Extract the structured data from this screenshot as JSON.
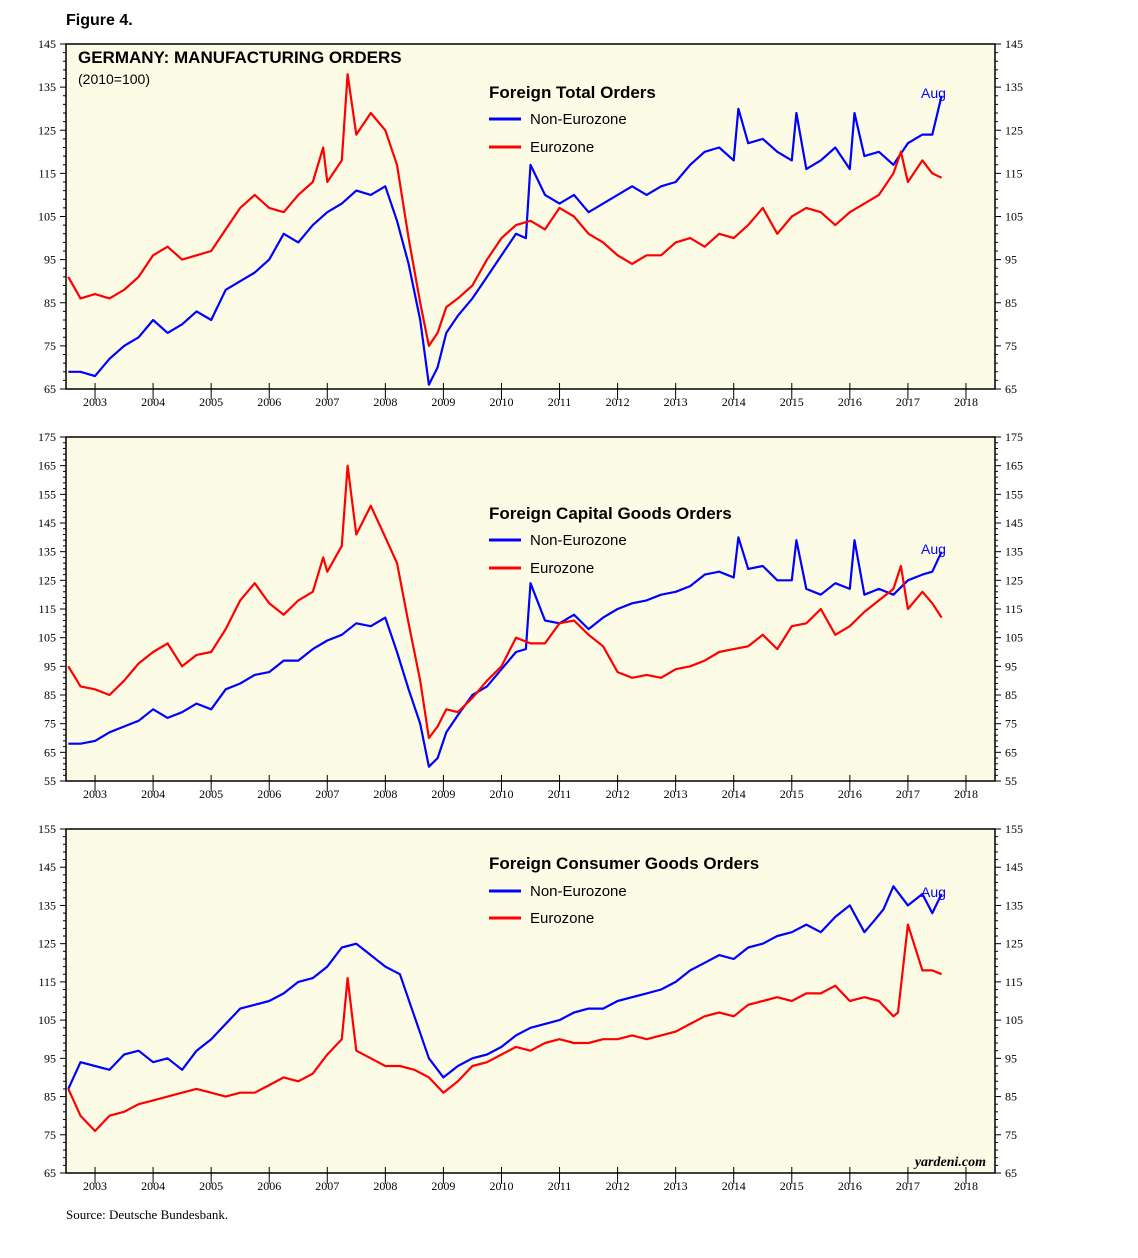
{
  "figure_label": "Figure 4.",
  "source": "Source: Deutsche Bundesbank.",
  "watermark": "yardeni.com",
  "colors": {
    "non_eurozone": "#0000ff",
    "eurozone": "#ff0000",
    "panel_bg": "#fcfce6"
  },
  "chart_data": [
    {
      "type": "line",
      "figure_title": "GERMANY: MANUFACTURING ORDERS",
      "figure_subtitle": "(2010=100)",
      "title": "Foreign Total Orders",
      "x_tick_labels": [
        "2003",
        "2004",
        "2005",
        "2006",
        "2007",
        "2008",
        "2009",
        "2010",
        "2011",
        "2012",
        "2013",
        "2014",
        "2015",
        "2016",
        "2017",
        "2018"
      ],
      "xlim": [
        2002.5,
        2018.5
      ],
      "ylim": [
        65,
        145
      ],
      "yticks": [
        65,
        75,
        85,
        95,
        105,
        115,
        125,
        135,
        145
      ],
      "end_label": "Aug",
      "series": [
        {
          "name": "Non-Eurozone",
          "x": [
            2002.54,
            2002.75,
            2003.0,
            2003.25,
            2003.5,
            2003.75,
            2004.0,
            2004.25,
            2004.5,
            2004.75,
            2005.0,
            2005.25,
            2005.5,
            2005.75,
            2006.0,
            2006.25,
            2006.5,
            2006.75,
            2007.0,
            2007.25,
            2007.5,
            2007.75,
            2008.0,
            2008.2,
            2008.4,
            2008.6,
            2008.75,
            2008.9,
            2009.05,
            2009.25,
            2009.5,
            2009.75,
            2010.0,
            2010.25,
            2010.42,
            2010.5,
            2010.75,
            2011.0,
            2011.25,
            2011.5,
            2011.75,
            2012.0,
            2012.25,
            2012.5,
            2012.75,
            2013.0,
            2013.25,
            2013.5,
            2013.75,
            2014.0,
            2014.08,
            2014.25,
            2014.5,
            2014.75,
            2015.0,
            2015.08,
            2015.25,
            2015.5,
            2015.75,
            2016.0,
            2016.08,
            2016.25,
            2016.5,
            2016.75,
            2017.0,
            2017.25,
            2017.42,
            2017.58
          ],
          "values": [
            69,
            69,
            68,
            72,
            75,
            77,
            81,
            78,
            80,
            83,
            81,
            88,
            90,
            92,
            95,
            101,
            99,
            103,
            106,
            108,
            111,
            110,
            112,
            104,
            94,
            81,
            66,
            70,
            78,
            82,
            86,
            91,
            96,
            101,
            100,
            117,
            110,
            108,
            110,
            106,
            108,
            110,
            112,
            110,
            112,
            113,
            117,
            120,
            121,
            118,
            130,
            122,
            123,
            120,
            118,
            129,
            116,
            118,
            121,
            116,
            129,
            119,
            120,
            117,
            122,
            124,
            124,
            133
          ]
        },
        {
          "name": "Eurozone",
          "x": [
            2002.54,
            2002.75,
            2003.0,
            2003.25,
            2003.5,
            2003.75,
            2004.0,
            2004.25,
            2004.5,
            2004.75,
            2005.0,
            2005.25,
            2005.5,
            2005.75,
            2006.0,
            2006.25,
            2006.5,
            2006.75,
            2006.93,
            2007.0,
            2007.25,
            2007.35,
            2007.5,
            2007.75,
            2008.0,
            2008.2,
            2008.4,
            2008.6,
            2008.75,
            2008.9,
            2009.05,
            2009.25,
            2009.5,
            2009.75,
            2010.0,
            2010.25,
            2010.5,
            2010.75,
            2011.0,
            2011.25,
            2011.5,
            2011.75,
            2012.0,
            2012.25,
            2012.5,
            2012.75,
            2013.0,
            2013.25,
            2013.5,
            2013.75,
            2014.0,
            2014.25,
            2014.5,
            2014.75,
            2015.0,
            2015.25,
            2015.5,
            2015.75,
            2016.0,
            2016.25,
            2016.5,
            2016.75,
            2016.88,
            2017.0,
            2017.25,
            2017.42,
            2017.58
          ],
          "values": [
            91,
            86,
            87,
            86,
            88,
            91,
            96,
            98,
            95,
            96,
            97,
            102,
            107,
            110,
            107,
            106,
            110,
            113,
            121,
            113,
            118,
            138,
            124,
            129,
            125,
            117,
            100,
            85,
            75,
            78,
            84,
            86,
            89,
            95,
            100,
            103,
            104,
            102,
            107,
            105,
            101,
            99,
            96,
            94,
            96,
            96,
            99,
            100,
            98,
            101,
            100,
            103,
            107,
            101,
            105,
            107,
            106,
            103,
            106,
            108,
            110,
            115,
            120,
            113,
            118,
            115,
            114
          ]
        }
      ],
      "legend": [
        "Non-Eurozone",
        "Eurozone"
      ]
    },
    {
      "type": "line",
      "title": "Foreign Capital Goods Orders",
      "x_tick_labels": [
        "2003",
        "2004",
        "2005",
        "2006",
        "2007",
        "2008",
        "2009",
        "2010",
        "2011",
        "2012",
        "2013",
        "2014",
        "2015",
        "2016",
        "2017",
        "2018"
      ],
      "xlim": [
        2002.5,
        2018.5
      ],
      "ylim": [
        55,
        175
      ],
      "yticks": [
        55,
        65,
        75,
        85,
        95,
        105,
        115,
        125,
        135,
        145,
        155,
        165,
        175
      ],
      "end_label": "Aug",
      "series": [
        {
          "name": "Non-Eurozone",
          "x": [
            2002.54,
            2002.75,
            2003.0,
            2003.25,
            2003.5,
            2003.75,
            2004.0,
            2004.25,
            2004.5,
            2004.75,
            2005.0,
            2005.25,
            2005.5,
            2005.75,
            2006.0,
            2006.25,
            2006.5,
            2006.75,
            2007.0,
            2007.25,
            2007.5,
            2007.75,
            2008.0,
            2008.2,
            2008.4,
            2008.6,
            2008.75,
            2008.9,
            2009.05,
            2009.25,
            2009.5,
            2009.75,
            2010.0,
            2010.25,
            2010.42,
            2010.5,
            2010.75,
            2011.0,
            2011.25,
            2011.5,
            2011.75,
            2012.0,
            2012.25,
            2012.5,
            2012.75,
            2013.0,
            2013.25,
            2013.5,
            2013.75,
            2014.0,
            2014.08,
            2014.25,
            2014.5,
            2014.75,
            2015.0,
            2015.08,
            2015.25,
            2015.5,
            2015.75,
            2016.0,
            2016.08,
            2016.25,
            2016.5,
            2016.75,
            2017.0,
            2017.25,
            2017.42,
            2017.58
          ],
          "values": [
            68,
            68,
            69,
            72,
            74,
            76,
            80,
            77,
            79,
            82,
            80,
            87,
            89,
            92,
            93,
            97,
            97,
            101,
            104,
            106,
            110,
            109,
            112,
            100,
            87,
            75,
            60,
            63,
            72,
            78,
            85,
            88,
            94,
            100,
            101,
            124,
            111,
            110,
            113,
            108,
            112,
            115,
            117,
            118,
            120,
            121,
            123,
            127,
            128,
            126,
            140,
            129,
            130,
            125,
            125,
            139,
            122,
            120,
            124,
            122,
            139,
            120,
            122,
            120,
            125,
            127,
            128,
            135
          ]
        },
        {
          "name": "Eurozone",
          "x": [
            2002.54,
            2002.75,
            2003.0,
            2003.25,
            2003.5,
            2003.75,
            2004.0,
            2004.25,
            2004.5,
            2004.75,
            2005.0,
            2005.25,
            2005.5,
            2005.75,
            2006.0,
            2006.25,
            2006.5,
            2006.75,
            2006.93,
            2007.0,
            2007.25,
            2007.35,
            2007.5,
            2007.75,
            2008.0,
            2008.2,
            2008.4,
            2008.6,
            2008.75,
            2008.9,
            2009.05,
            2009.25,
            2009.5,
            2009.75,
            2010.0,
            2010.25,
            2010.5,
            2010.75,
            2011.0,
            2011.25,
            2011.5,
            2011.75,
            2012.0,
            2012.25,
            2012.5,
            2012.75,
            2013.0,
            2013.25,
            2013.5,
            2013.75,
            2014.0,
            2014.25,
            2014.5,
            2014.75,
            2015.0,
            2015.25,
            2015.5,
            2015.75,
            2016.0,
            2016.25,
            2016.5,
            2016.75,
            2016.88,
            2017.0,
            2017.25,
            2017.42,
            2017.58
          ],
          "values": [
            95,
            88,
            87,
            85,
            90,
            96,
            100,
            103,
            95,
            99,
            100,
            108,
            118,
            124,
            117,
            113,
            118,
            121,
            133,
            128,
            137,
            165,
            141,
            151,
            140,
            131,
            110,
            90,
            70,
            74,
            80,
            79,
            84,
            90,
            95,
            105,
            103,
            103,
            110,
            111,
            106,
            102,
            93,
            91,
            92,
            91,
            94,
            95,
            97,
            100,
            101,
            102,
            106,
            101,
            109,
            110,
            115,
            106,
            109,
            114,
            118,
            122,
            130,
            115,
            121,
            117,
            112
          ]
        }
      ],
      "legend": [
        "Non-Eurozone",
        "Eurozone"
      ]
    },
    {
      "type": "line",
      "title": "Foreign Consumer Goods Orders",
      "x_tick_labels": [
        "2003",
        "2004",
        "2005",
        "2006",
        "2007",
        "2008",
        "2009",
        "2010",
        "2011",
        "2012",
        "2013",
        "2014",
        "2015",
        "2016",
        "2017",
        "2018"
      ],
      "xlim": [
        2002.5,
        2018.5
      ],
      "ylim": [
        65,
        155
      ],
      "yticks": [
        65,
        75,
        85,
        95,
        105,
        115,
        125,
        135,
        145,
        155
      ],
      "end_label": "Aug",
      "series": [
        {
          "name": "Non-Eurozone",
          "x": [
            2002.54,
            2002.75,
            2003.0,
            2003.25,
            2003.5,
            2003.75,
            2004.0,
            2004.25,
            2004.5,
            2004.75,
            2005.0,
            2005.25,
            2005.5,
            2005.75,
            2006.0,
            2006.25,
            2006.5,
            2006.75,
            2007.0,
            2007.25,
            2007.5,
            2007.75,
            2008.0,
            2008.25,
            2008.5,
            2008.75,
            2009.0,
            2009.25,
            2009.5,
            2009.75,
            2010.0,
            2010.25,
            2010.5,
            2010.75,
            2011.0,
            2011.25,
            2011.5,
            2011.75,
            2012.0,
            2012.25,
            2012.5,
            2012.75,
            2013.0,
            2013.25,
            2013.5,
            2013.75,
            2014.0,
            2014.25,
            2014.5,
            2014.75,
            2015.0,
            2015.25,
            2015.5,
            2015.75,
            2016.0,
            2016.25,
            2016.42,
            2016.58,
            2016.75,
            2017.0,
            2017.25,
            2017.42,
            2017.58
          ],
          "values": [
            87,
            94,
            93,
            92,
            96,
            97,
            94,
            95,
            92,
            97,
            100,
            104,
            108,
            109,
            110,
            112,
            115,
            116,
            119,
            124,
            125,
            122,
            119,
            117,
            106,
            95,
            90,
            93,
            95,
            96,
            98,
            101,
            103,
            104,
            105,
            107,
            108,
            108,
            110,
            111,
            112,
            113,
            115,
            118,
            120,
            122,
            121,
            124,
            125,
            127,
            128,
            130,
            128,
            132,
            135,
            128,
            131,
            134,
            140,
            135,
            138,
            133,
            138
          ]
        },
        {
          "name": "Eurozone",
          "x": [
            2002.54,
            2002.75,
            2003.0,
            2003.25,
            2003.5,
            2003.75,
            2004.0,
            2004.25,
            2004.5,
            2004.75,
            2005.0,
            2005.25,
            2005.5,
            2005.75,
            2006.0,
            2006.25,
            2006.5,
            2006.75,
            2007.0,
            2007.25,
            2007.35,
            2007.5,
            2007.75,
            2008.0,
            2008.25,
            2008.5,
            2008.75,
            2009.0,
            2009.25,
            2009.5,
            2009.75,
            2010.0,
            2010.25,
            2010.5,
            2010.75,
            2011.0,
            2011.25,
            2011.5,
            2011.75,
            2012.0,
            2012.25,
            2012.5,
            2012.75,
            2013.0,
            2013.25,
            2013.5,
            2013.75,
            2014.0,
            2014.25,
            2014.5,
            2014.75,
            2015.0,
            2015.25,
            2015.5,
            2015.75,
            2016.0,
            2016.25,
            2016.5,
            2016.75,
            2016.83,
            2017.0,
            2017.25,
            2017.42,
            2017.58
          ],
          "values": [
            87,
            80,
            76,
            80,
            81,
            83,
            84,
            85,
            86,
            87,
            86,
            85,
            86,
            86,
            88,
            90,
            89,
            91,
            96,
            100,
            116,
            97,
            95,
            93,
            93,
            92,
            90,
            86,
            89,
            93,
            94,
            96,
            98,
            97,
            99,
            100,
            99,
            99,
            100,
            100,
            101,
            100,
            101,
            102,
            104,
            106,
            107,
            106,
            109,
            110,
            111,
            110,
            112,
            112,
            114,
            110,
            111,
            110,
            106,
            107,
            130,
            118,
            118,
            117
          ]
        }
      ],
      "legend": [
        "Non-Eurozone",
        "Eurozone"
      ]
    }
  ]
}
